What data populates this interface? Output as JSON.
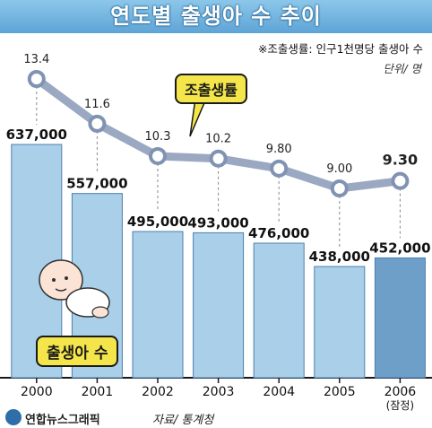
{
  "title": "연도별 출생아 수 추이",
  "note": "※조출생률: 인구1천명당 출생아 수",
  "unit": "단위/ 명",
  "rate_label": "조출생률",
  "birth_label": "출생아 수",
  "footer": {
    "agency": "연합뉴스그래픽",
    "source": "자료/ 통계청"
  },
  "colors": {
    "bar": "#a9cfe9",
    "bar_last": "#6d9fc9",
    "line": "#9aa8c2",
    "marker": "#8193b3",
    "highlight": "#f4e64a"
  },
  "chart_data": {
    "type": "bar+line",
    "categories": [
      "2000",
      "2001",
      "2002",
      "2003",
      "2004",
      "2005",
      "2006\n(잠정)"
    ],
    "series": [
      {
        "name": "출생아 수",
        "type": "bar",
        "values": [
          637000,
          557000,
          495000,
          493000,
          476000,
          438000,
          452000
        ],
        "labels": [
          "637,000",
          "557,000",
          "495,000",
          "493,000",
          "476,000",
          "438,000",
          "452,000"
        ]
      },
      {
        "name": "조출생률",
        "type": "line",
        "values": [
          13.4,
          11.6,
          10.3,
          10.2,
          9.8,
          9.0,
          9.3
        ],
        "labels": [
          "13.4",
          "11.6",
          "10.3",
          "10.2",
          "9.80",
          "9.00",
          "9.30"
        ]
      }
    ],
    "icons": [
      "baby-illustration-icon",
      "agency-logo-icon"
    ]
  }
}
